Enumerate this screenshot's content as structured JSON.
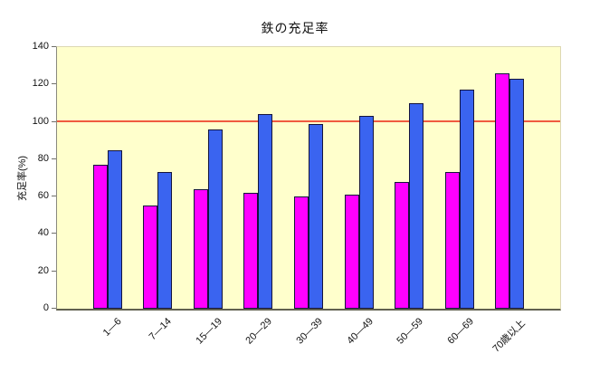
{
  "window": {
    "background": "#ffffff"
  },
  "chart_data": {
    "type": "bar",
    "title": "鉄の充足率",
    "xlabel": "",
    "ylabel": "充足率(%)",
    "categories": [
      "1—6",
      "7—14",
      "15—19",
      "20—29",
      "30—39",
      "40—49",
      "50—59",
      "60—69",
      "70歳以上"
    ],
    "series": [
      {
        "name": "series1-magenta",
        "color": "#ff00ff",
        "values": [
          77,
          55,
          64,
          62,
          60,
          61,
          68,
          73,
          126
        ]
      },
      {
        "name": "series2-blue",
        "color": "#3a64f0",
        "values": [
          85,
          73,
          96,
          104,
          99,
          103,
          110,
          117,
          123
        ]
      }
    ],
    "ylim": [
      0,
      140
    ],
    "yticks": [
      0,
      20,
      40,
      60,
      80,
      100,
      120,
      140
    ],
    "reference_line": {
      "value": 100,
      "color": "#f05a40"
    },
    "plot_background": "#ffffcc",
    "bar_border_color": "#14143c",
    "legend": "none",
    "grid": "off",
    "x_label_rotation_deg": 45
  }
}
